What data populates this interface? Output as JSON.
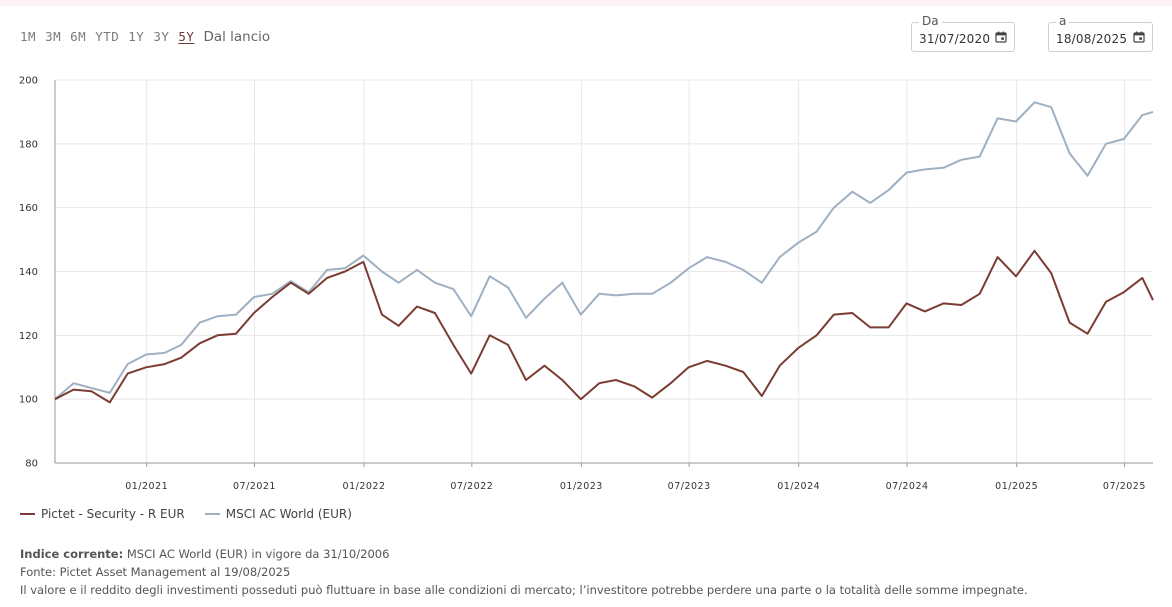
{
  "periods": [
    {
      "label": "1M",
      "active": false
    },
    {
      "label": "3M",
      "active": false
    },
    {
      "label": "6M",
      "active": false
    },
    {
      "label": "YTD",
      "active": false
    },
    {
      "label": "1Y",
      "active": false
    },
    {
      "label": "3Y",
      "active": false
    },
    {
      "label": "5Y",
      "active": true
    },
    {
      "label": "Dal lancio",
      "active": false
    }
  ],
  "date_from": {
    "label": "Da",
    "value": "31/07/2020"
  },
  "date_to": {
    "label": "a",
    "value": "18/08/2025"
  },
  "colors": {
    "fund": "#7b3c33",
    "benchmark": "#9fb0c2",
    "grid": "#e8e8e8",
    "axis": "#999999"
  },
  "chart_data": {
    "type": "line",
    "ylim": [
      80,
      200
    ],
    "yticks": [
      80,
      100,
      120,
      140,
      160,
      180,
      200
    ],
    "x_start": "2020-07-31",
    "x_end": "2025-08-18",
    "xtick_labels": [
      {
        "date": "2021-01-01",
        "label": "01/2021"
      },
      {
        "date": "2021-07-01",
        "label": "07/2021"
      },
      {
        "date": "2022-01-01",
        "label": "01/2022"
      },
      {
        "date": "2022-07-01",
        "label": "07/2022"
      },
      {
        "date": "2023-01-01",
        "label": "01/2023"
      },
      {
        "date": "2023-07-01",
        "label": "07/2023"
      },
      {
        "date": "2024-01-01",
        "label": "01/2024"
      },
      {
        "date": "2024-07-01",
        "label": "07/2024"
      },
      {
        "date": "2025-01-01",
        "label": "01/2025"
      },
      {
        "date": "2025-07-01",
        "label": "07/2025"
      }
    ],
    "x": [
      "2020-07-31",
      "2020-08-31",
      "2020-09-30",
      "2020-10-31",
      "2020-11-30",
      "2020-12-31",
      "2021-01-31",
      "2021-02-28",
      "2021-03-31",
      "2021-04-30",
      "2021-05-31",
      "2021-06-30",
      "2021-07-31",
      "2021-08-31",
      "2021-09-30",
      "2021-10-31",
      "2021-11-30",
      "2021-12-31",
      "2022-01-31",
      "2022-02-28",
      "2022-03-31",
      "2022-04-30",
      "2022-05-31",
      "2022-06-30",
      "2022-07-31",
      "2022-08-31",
      "2022-09-30",
      "2022-10-31",
      "2022-11-30",
      "2022-12-31",
      "2023-01-31",
      "2023-02-28",
      "2023-03-31",
      "2023-04-30",
      "2023-05-31",
      "2023-06-30",
      "2023-07-31",
      "2023-08-31",
      "2023-09-30",
      "2023-10-31",
      "2023-11-30",
      "2023-12-31",
      "2024-01-31",
      "2024-02-29",
      "2024-03-31",
      "2024-04-30",
      "2024-05-31",
      "2024-06-30",
      "2024-07-31",
      "2024-08-31",
      "2024-09-30",
      "2024-10-31",
      "2024-11-30",
      "2024-12-31",
      "2025-01-31",
      "2025-02-28",
      "2025-03-31",
      "2025-04-30",
      "2025-05-31",
      "2025-06-30",
      "2025-07-31",
      "2025-08-18"
    ],
    "series": [
      {
        "name": "Pictet - Security - R EUR",
        "color": "#7b3c33",
        "values": [
          100,
          103,
          102.5,
          99,
          108,
          110,
          111,
          113,
          117.5,
          120,
          120.5,
          127,
          132,
          136.5,
          133,
          138,
          140,
          143,
          126.5,
          123,
          129,
          127,
          117,
          108,
          120,
          117,
          106,
          110.5,
          106,
          100,
          105,
          106,
          104,
          100.5,
          105,
          110,
          112,
          110.5,
          108.5,
          101,
          110.5,
          116,
          120,
          126.5,
          127,
          122.5,
          122.5,
          130,
          127.5,
          130,
          129.5,
          133,
          144.5,
          138.5,
          146.5,
          139.5,
          124,
          120.5,
          130.5,
          133.5,
          138,
          131
        ]
      },
      {
        "name": "MSCI AC World (EUR)",
        "color": "#9fb0c2",
        "values": [
          100,
          105,
          103.5,
          102,
          111,
          114,
          114.5,
          117,
          124,
          126,
          126.5,
          132,
          133,
          137,
          133.5,
          140.5,
          141,
          145,
          140,
          136.5,
          140.5,
          136.5,
          134.5,
          126,
          138.5,
          135,
          125.5,
          131.5,
          136.5,
          126.5,
          133,
          132.5,
          133,
          133,
          136.5,
          141,
          144.5,
          143,
          140.5,
          136.5,
          144.5,
          149,
          152.5,
          160,
          165,
          161.5,
          165.5,
          171,
          172,
          172.5,
          175,
          176,
          188,
          187,
          193,
          191.5,
          177,
          170,
          180,
          181.5,
          189,
          190
        ]
      }
    ]
  },
  "notes": {
    "index_label": "Indice corrente:",
    "index_text": " MSCI AC World (EUR) in vigore da 31/10/2006",
    "source": "Fonte: Pictet Asset Management al 19/08/2025",
    "disclaimer": "Il valore e il reddito degli investimenti posseduti può fluttuare in base alle condizioni di mercato; l’investitore potrebbe perdere una parte o la totalità delle somme impegnate."
  }
}
